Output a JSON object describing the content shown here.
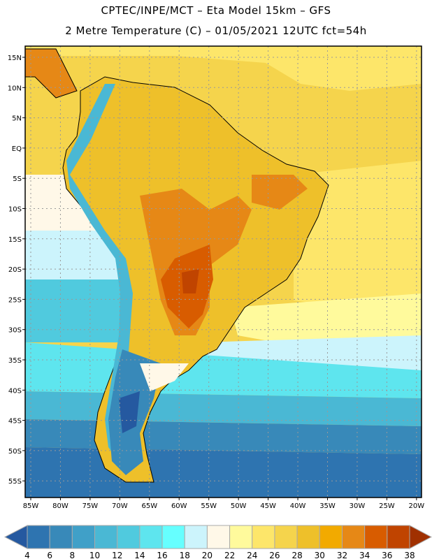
{
  "header": {
    "line1": "CPTEC/INPE/MCT –  Eta Model 15km – GFS",
    "line2": "2 Metre Temperature (C) – 01/05/2021 12UTC fct=54h"
  },
  "map": {
    "lat_labels": [
      "15N",
      "10N",
      "5N",
      "EQ",
      "5S",
      "10S",
      "15S",
      "20S",
      "25S",
      "30S",
      "35S",
      "40S",
      "45S",
      "50S",
      "55S"
    ],
    "lat_values": [
      15,
      10,
      5,
      0,
      -5,
      -10,
      -15,
      -20,
      -25,
      -30,
      -35,
      -40,
      -45,
      -50,
      -55
    ],
    "lon_labels": [
      "85W",
      "80W",
      "75W",
      "70W",
      "65W",
      "60W",
      "55W",
      "50W",
      "45W",
      "40W",
      "35W",
      "30W",
      "25W",
      "20W"
    ],
    "lon_values": [
      -85,
      -80,
      -75,
      -70,
      -65,
      -60,
      -55,
      -50,
      -45,
      -40,
      -35,
      -30,
      -25,
      -20
    ]
  },
  "colorbar": {
    "labels": [
      "4",
      "6",
      "8",
      "10",
      "12",
      "14",
      "16",
      "18",
      "20",
      "22",
      "24",
      "26",
      "28",
      "30",
      "32",
      "34",
      "36",
      "38"
    ],
    "under_color": "#2559a0",
    "over_color": "#a03000",
    "colors": [
      "#2e74b0",
      "#3889b9",
      "#40a0c8",
      "#4ab8d4",
      "#50cade",
      "#5ee5ee",
      "#66ffff",
      "#ccf4fc",
      "#fff8e8",
      "#fffa9c",
      "#fde66a",
      "#f5d44c",
      "#eec02a",
      "#f2aa00",
      "#e68816",
      "#d85c00",
      "#c04400"
    ]
  }
}
